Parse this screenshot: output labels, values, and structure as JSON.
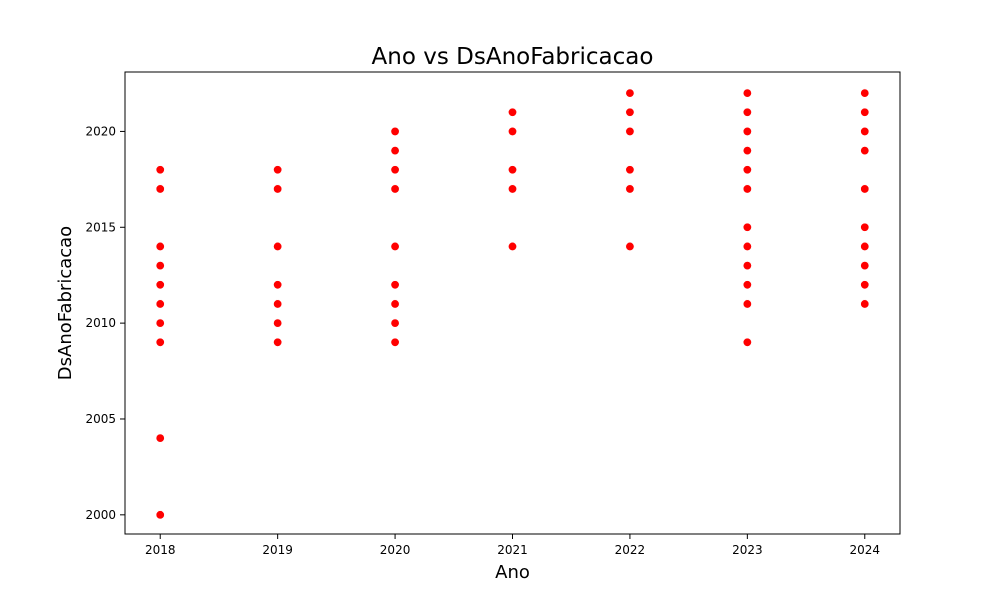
{
  "chart_data": {
    "type": "scatter",
    "title": "Ano vs DsAnoFabricacao",
    "xlabel": "Ano",
    "ylabel": "DsAnoFabricacao",
    "x_ticks": [
      2018,
      2019,
      2020,
      2021,
      2022,
      2023,
      2024
    ],
    "y_ticks": [
      2000,
      2005,
      2010,
      2015,
      2020
    ],
    "xlim": [
      2017.7,
      2024.3
    ],
    "ylim": [
      1999.0,
      2023.1
    ],
    "grid": false,
    "marker_color": "#ff0000",
    "points": [
      {
        "x": 2018,
        "y": 2018
      },
      {
        "x": 2018,
        "y": 2017
      },
      {
        "x": 2018,
        "y": 2014
      },
      {
        "x": 2018,
        "y": 2013
      },
      {
        "x": 2018,
        "y": 2012
      },
      {
        "x": 2018,
        "y": 2011
      },
      {
        "x": 2018,
        "y": 2010
      },
      {
        "x": 2018,
        "y": 2009
      },
      {
        "x": 2018,
        "y": 2004
      },
      {
        "x": 2018,
        "y": 2000
      },
      {
        "x": 2019,
        "y": 2018
      },
      {
        "x": 2019,
        "y": 2017
      },
      {
        "x": 2019,
        "y": 2014
      },
      {
        "x": 2019,
        "y": 2012
      },
      {
        "x": 2019,
        "y": 2011
      },
      {
        "x": 2019,
        "y": 2010
      },
      {
        "x": 2019,
        "y": 2009
      },
      {
        "x": 2020,
        "y": 2020
      },
      {
        "x": 2020,
        "y": 2019
      },
      {
        "x": 2020,
        "y": 2018
      },
      {
        "x": 2020,
        "y": 2017
      },
      {
        "x": 2020,
        "y": 2014
      },
      {
        "x": 2020,
        "y": 2012
      },
      {
        "x": 2020,
        "y": 2011
      },
      {
        "x": 2020,
        "y": 2010
      },
      {
        "x": 2020,
        "y": 2009
      },
      {
        "x": 2021,
        "y": 2021
      },
      {
        "x": 2021,
        "y": 2020
      },
      {
        "x": 2021,
        "y": 2018
      },
      {
        "x": 2021,
        "y": 2017
      },
      {
        "x": 2021,
        "y": 2014
      },
      {
        "x": 2022,
        "y": 2022
      },
      {
        "x": 2022,
        "y": 2021
      },
      {
        "x": 2022,
        "y": 2020
      },
      {
        "x": 2022,
        "y": 2018
      },
      {
        "x": 2022,
        "y": 2017
      },
      {
        "x": 2022,
        "y": 2014
      },
      {
        "x": 2023,
        "y": 2022
      },
      {
        "x": 2023,
        "y": 2021
      },
      {
        "x": 2023,
        "y": 2020
      },
      {
        "x": 2023,
        "y": 2019
      },
      {
        "x": 2023,
        "y": 2018
      },
      {
        "x": 2023,
        "y": 2017
      },
      {
        "x": 2023,
        "y": 2015
      },
      {
        "x": 2023,
        "y": 2014
      },
      {
        "x": 2023,
        "y": 2013
      },
      {
        "x": 2023,
        "y": 2012
      },
      {
        "x": 2023,
        "y": 2011
      },
      {
        "x": 2023,
        "y": 2009
      },
      {
        "x": 2024,
        "y": 2022
      },
      {
        "x": 2024,
        "y": 2021
      },
      {
        "x": 2024,
        "y": 2020
      },
      {
        "x": 2024,
        "y": 2019
      },
      {
        "x": 2024,
        "y": 2017
      },
      {
        "x": 2024,
        "y": 2015
      },
      {
        "x": 2024,
        "y": 2014
      },
      {
        "x": 2024,
        "y": 2013
      },
      {
        "x": 2024,
        "y": 2012
      },
      {
        "x": 2024,
        "y": 2011
      }
    ]
  }
}
